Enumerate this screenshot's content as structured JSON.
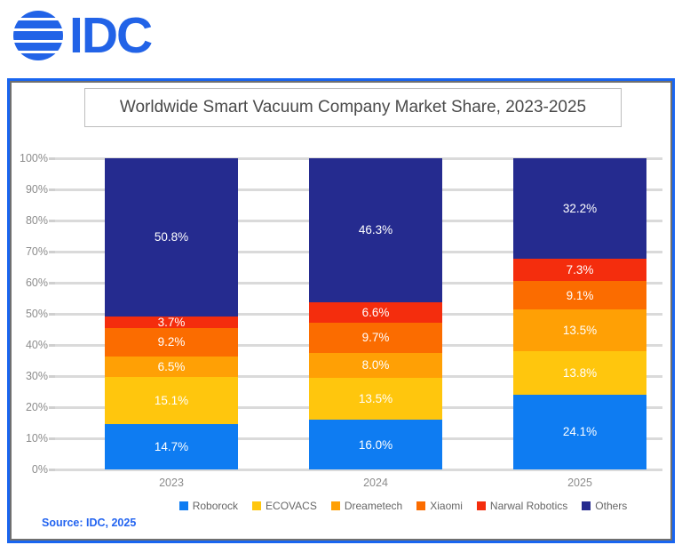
{
  "logo": {
    "text": "IDC",
    "globe_icon": "striped-globe-icon",
    "color": "#2263E7"
  },
  "chart": {
    "title": "Worldwide Smart Vacuum Company Market Share, 2023-2025",
    "source": "Source: IDC, 2025",
    "frame_border_color": "#1965F0",
    "frame_inner_border_color": "#6F6F6F"
  },
  "chart_data": {
    "type": "bar",
    "stacked": true,
    "title": "Worldwide Smart Vacuum Company Market Share, 2023-2025",
    "categories": [
      "2023",
      "2024",
      "2025"
    ],
    "series": [
      {
        "name": "Roborock",
        "color": "#0E7CF2",
        "values": [
          14.7,
          16.0,
          24.1
        ]
      },
      {
        "name": "ECOVACS",
        "color": "#FFC60D",
        "values": [
          15.1,
          13.5,
          13.8
        ]
      },
      {
        "name": "Dreametech",
        "color": "#FFA005",
        "values": [
          6.5,
          8.0,
          13.5
        ]
      },
      {
        "name": "Xiaomi",
        "color": "#FB6C00",
        "values": [
          9.2,
          9.7,
          9.1
        ]
      },
      {
        "name": "Narwal Robotics",
        "color": "#F42D0D",
        "values": [
          3.7,
          6.6,
          7.3
        ]
      },
      {
        "name": "Others",
        "color": "#252B8F",
        "values": [
          50.8,
          46.3,
          32.2
        ]
      }
    ],
    "xlabel": "",
    "ylabel": "",
    "ylim": [
      0,
      100
    ],
    "yticks": [
      "100%",
      "90%",
      "80%",
      "70%",
      "60%",
      "50%",
      "40%",
      "30%",
      "20%",
      "10%",
      "0%"
    ],
    "value_suffix": "%",
    "grid": true,
    "legend_position": "bottom"
  }
}
